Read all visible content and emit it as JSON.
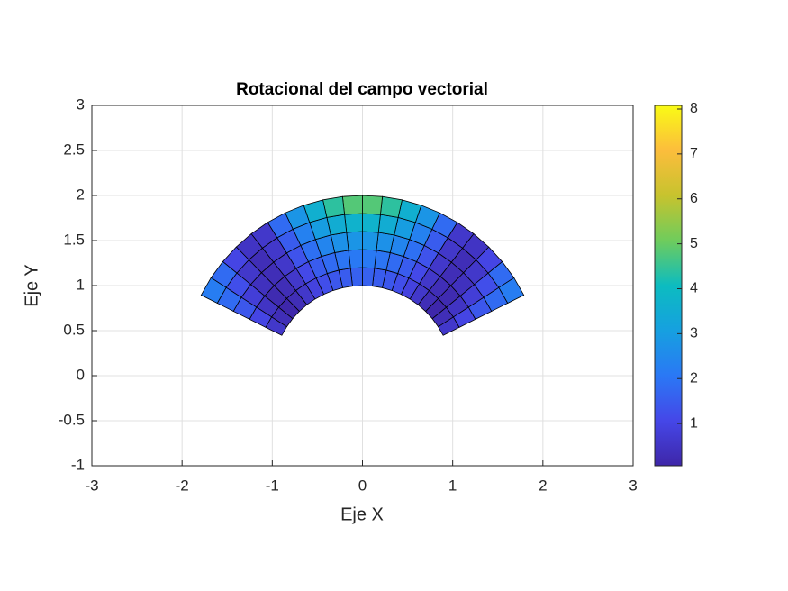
{
  "chart_data": {
    "type": "surface",
    "title": "Rotacional del campo vectorial",
    "xlabel": "Eje X",
    "ylabel": "Eje Y",
    "xlim": [
      -3,
      3
    ],
    "ylim": [
      -1,
      3
    ],
    "xticks": [
      -3,
      -2,
      -1,
      0,
      1,
      2,
      3
    ],
    "yticks": [
      -1,
      -0.5,
      0,
      0.5,
      1,
      1.5,
      2,
      2.5,
      3
    ],
    "grid": true,
    "r": [
      1,
      2
    ],
    "theta": [
      26.57,
      153.43
    ],
    "values": [
      [
        0.6,
        0.3,
        0.1,
        0.3,
        0.6,
        0.9,
        1.2,
        1.4,
        1.5,
        1.6,
        1.6,
        1.5,
        1.4,
        1.2,
        0.9,
        0.6,
        0.3,
        0.1,
        0.3,
        0.6
      ],
      [
        1.0,
        0.5,
        0.2,
        0.3,
        0.6,
        1.1,
        1.5,
        1.8,
        2.0,
        2.1,
        2.1,
        2.0,
        1.8,
        1.5,
        1.1,
        0.6,
        0.3,
        0.2,
        0.5,
        1.0
      ],
      [
        1.4,
        0.8,
        0.4,
        0.3,
        0.6,
        1.3,
        1.9,
        2.4,
        2.7,
        2.8,
        2.8,
        2.7,
        2.4,
        1.9,
        1.3,
        0.6,
        0.3,
        0.4,
        0.8,
        1.4
      ],
      [
        1.8,
        1.2,
        0.6,
        0.3,
        0.6,
        1.5,
        2.3,
        3.0,
        3.5,
        3.7,
        3.7,
        3.5,
        3.0,
        2.3,
        1.5,
        0.6,
        0.3,
        0.6,
        1.2,
        1.8
      ],
      [
        2.2,
        1.8,
        1.0,
        0.5,
        0.6,
        1.8,
        2.8,
        3.6,
        4.4,
        4.8,
        4.8,
        4.4,
        3.6,
        2.8,
        1.8,
        0.6,
        0.5,
        1.0,
        1.8,
        2.2
      ]
    ],
    "clim": [
      0.06,
      8.08
    ],
    "cticks": [
      1,
      2,
      3,
      4,
      5,
      6,
      7,
      8
    ],
    "colormap": [
      "#3e26a8",
      "#4547e8",
      "#2a78f5",
      "#16a0e0",
      "#0cbcc0",
      "#6fcc5c",
      "#c7c32e",
      "#fcbd3c",
      "#f9fb15"
    ]
  }
}
